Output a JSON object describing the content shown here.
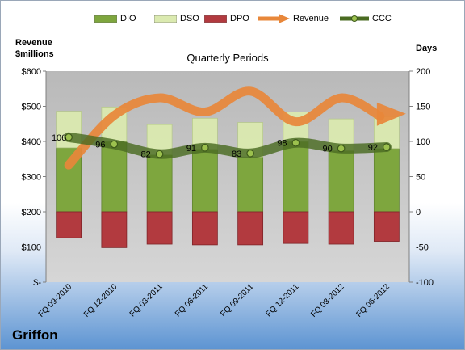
{
  "company": "Griffon",
  "chart_data": {
    "type": "bar",
    "title": "Quarterly Periods",
    "left_axis_label": "Revenue\n$millions",
    "right_axis_label": "Days",
    "categories": [
      "FQ 09-2010",
      "FQ 12-2010",
      "FQ 03-2011",
      "FQ 06-2011",
      "FQ 09-2011",
      "FQ 12-2011",
      "FQ 03-2012",
      "FQ 06-2012"
    ],
    "left_ticks": [
      "$-",
      "$100",
      "$200",
      "$300",
      "$400",
      "$500",
      "$600"
    ],
    "right_ticks": [
      "-100",
      "-50",
      "0",
      "50",
      "100",
      "150",
      "200"
    ],
    "left_ylim": [
      0,
      600
    ],
    "right_ylim": [
      -100,
      200
    ],
    "series": [
      {
        "name": "DIO",
        "kind": "stacked-bar",
        "color": "#7ea63e",
        "values": [
          91,
          100,
          81,
          89,
          78,
          100,
          87,
          90
        ]
      },
      {
        "name": "DSO",
        "kind": "stacked-bar",
        "color": "#dbeab0",
        "values": [
          52,
          49,
          43,
          44,
          49,
          42,
          45,
          45
        ]
      },
      {
        "name": "DPO",
        "kind": "negative-bar",
        "color": "#b23a3f",
        "values": [
          37,
          51,
          46,
          47,
          47,
          45,
          46,
          42
        ]
      },
      {
        "name": "Revenue",
        "kind": "arrow",
        "color": "#e8873a",
        "values": [
          333,
          474,
          524,
          484,
          543,
          456,
          524,
          474
        ]
      },
      {
        "name": "CCC",
        "kind": "line",
        "color": "#4a6b22",
        "values": [
          106,
          96,
          82,
          91,
          83,
          98,
          90,
          92
        ]
      }
    ],
    "ccc_labels": [
      "106",
      "96",
      "82",
      "91",
      "83",
      "98",
      "90",
      "92"
    ],
    "legend": [
      "DIO",
      "DSO",
      "DPO",
      "Revenue",
      "CCC"
    ],
    "grid": false,
    "legend_position": "top"
  }
}
